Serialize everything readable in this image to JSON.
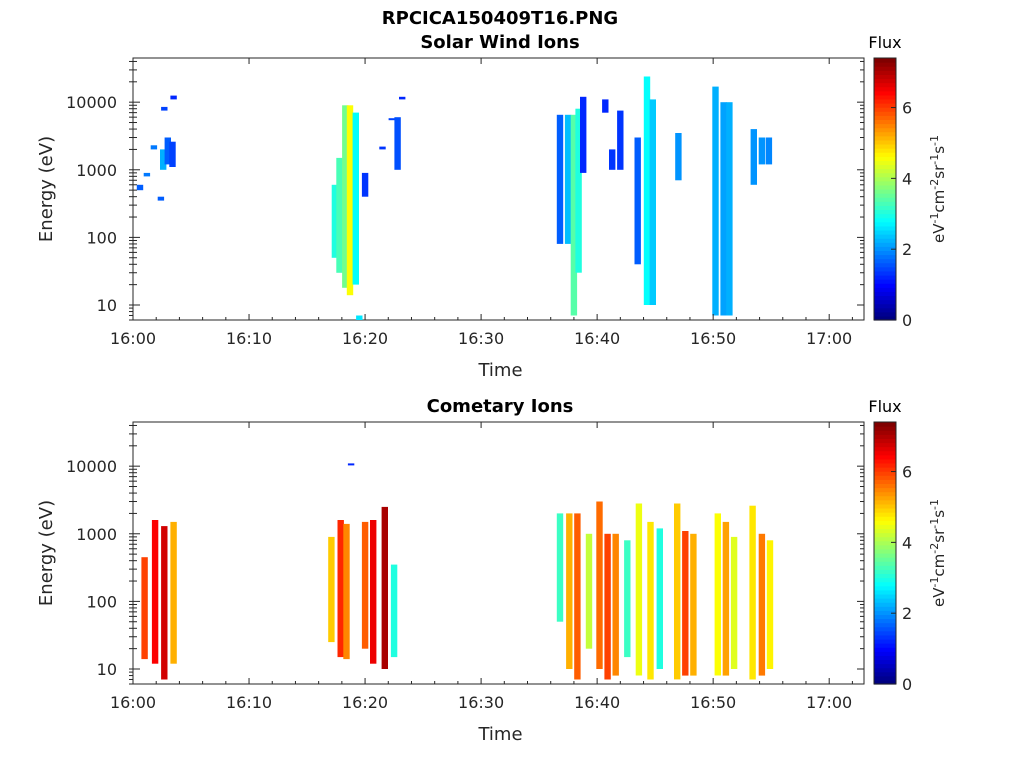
{
  "figure_title": "RPCICA150409T16.PNG",
  "chart_data": [
    {
      "type": "heatmap",
      "title": "Solar Wind Ions",
      "xlabel": "Time",
      "ylabel": "Energy (eV)",
      "x_ticks": [
        "16:00",
        "16:10",
        "16:20",
        "16:30",
        "16:40",
        "16:50",
        "17:00"
      ],
      "xlim_minutes": [
        0,
        63
      ],
      "y_scale": "log",
      "y_ticks": [
        "10",
        "100",
        "1000",
        "10000"
      ],
      "ylim": [
        6,
        45000
      ],
      "colorbar": {
        "title": "Flux",
        "label": "eV-1cm-2sr-1s-1",
        "ticks": [
          "0",
          "2",
          "4",
          "6"
        ],
        "range": [
          0,
          7.4
        ]
      },
      "blocks": [
        {
          "t": 0.6,
          "e": [
            500,
            600
          ],
          "v": 1.6
        },
        {
          "t": 1.2,
          "e": [
            800,
            900
          ],
          "v": 1.8
        },
        {
          "t": 1.8,
          "e": [
            2000,
            2300
          ],
          "v": 1.8
        },
        {
          "t": 2.4,
          "e": [
            350,
            400
          ],
          "v": 1.6
        },
        {
          "t": 2.6,
          "e": [
            1000,
            2000
          ],
          "v": 2.2
        },
        {
          "t": 2.7,
          "e": [
            7500,
            8500
          ],
          "v": 1.4
        },
        {
          "t": 3.0,
          "e": [
            1200,
            3000
          ],
          "v": 1.6
        },
        {
          "t": 3.4,
          "e": [
            1100,
            2600
          ],
          "v": 1.4
        },
        {
          "t": 3.5,
          "e": [
            11000,
            12500
          ],
          "v": 1.2
        },
        {
          "t": 17.4,
          "e": [
            50,
            600
          ],
          "v": 3.0
        },
        {
          "t": 17.8,
          "e": [
            30,
            1500
          ],
          "v": 3.3
        },
        {
          "t": 18.3,
          "e": [
            18,
            9000
          ],
          "v": 3.6
        },
        {
          "t": 18.7,
          "e": [
            14,
            9000
          ],
          "v": 4.6
        },
        {
          "t": 19.2,
          "e": [
            20,
            7000
          ],
          "v": 2.8
        },
        {
          "t": 19.5,
          "e": [
            6,
            7
          ],
          "v": 2.6
        },
        {
          "t": 20.0,
          "e": [
            400,
            900
          ],
          "v": 1.3
        },
        {
          "t": 21.5,
          "e": [
            2000,
            2200
          ],
          "v": 1.3
        },
        {
          "t": 22.3,
          "e": [
            5500,
            5800
          ],
          "v": 1.4
        },
        {
          "t": 22.8,
          "e": [
            1000,
            6000
          ],
          "v": 1.5
        },
        {
          "t": 23.2,
          "e": [
            11000,
            12000
          ],
          "v": 1.2
        },
        {
          "t": 36.8,
          "e": [
            80,
            6500
          ],
          "v": 1.6
        },
        {
          "t": 37.5,
          "e": [
            80,
            6500
          ],
          "v": 2.3
        },
        {
          "t": 38.0,
          "e": [
            7,
            6500
          ],
          "v": 3.4
        },
        {
          "t": 38.4,
          "e": [
            30,
            8000
          ],
          "v": 3.0
        },
        {
          "t": 38.8,
          "e": [
            900,
            12000
          ],
          "v": 1.2
        },
        {
          "t": 40.7,
          "e": [
            7000,
            11000
          ],
          "v": 1.2
        },
        {
          "t": 41.3,
          "e": [
            1000,
            2000
          ],
          "v": 1.3
        },
        {
          "t": 42.0,
          "e": [
            1000,
            7500
          ],
          "v": 1.3
        },
        {
          "t": 43.5,
          "e": [
            40,
            3000
          ],
          "v": 1.6
        },
        {
          "t": 44.3,
          "e": [
            10,
            24000
          ],
          "v": 2.8
        },
        {
          "t": 44.8,
          "e": [
            10,
            11000
          ],
          "v": 2.4
        },
        {
          "t": 47.0,
          "e": [
            700,
            3500
          ],
          "v": 2.0
        },
        {
          "t": 50.2,
          "e": [
            7,
            17000
          ],
          "v": 2.2
        },
        {
          "t": 50.9,
          "e": [
            7,
            10000
          ],
          "v": 2.1
        },
        {
          "t": 51.4,
          "e": [
            7,
            10000
          ],
          "v": 2.2
        },
        {
          "t": 53.5,
          "e": [
            600,
            4000
          ],
          "v": 2.0
        },
        {
          "t": 54.2,
          "e": [
            1200,
            3000
          ],
          "v": 2.0
        },
        {
          "t": 54.8,
          "e": [
            1200,
            3000
          ],
          "v": 1.9
        }
      ]
    },
    {
      "type": "heatmap",
      "title": "Cometary Ions",
      "xlabel": "Time",
      "ylabel": "Energy (eV)",
      "x_ticks": [
        "16:00",
        "16:10",
        "16:20",
        "16:30",
        "16:40",
        "16:50",
        "17:00"
      ],
      "xlim_minutes": [
        0,
        63
      ],
      "y_scale": "log",
      "y_ticks": [
        "10",
        "100",
        "1000",
        "10000"
      ],
      "ylim": [
        6,
        45000
      ],
      "colorbar": {
        "title": "Flux",
        "label": "eV-1cm-2sr-1s-1",
        "ticks": [
          "0",
          "2",
          "4",
          "6"
        ],
        "range": [
          0,
          7.4
        ]
      },
      "blocks": [
        {
          "t": 1.0,
          "e": [
            14,
            450
          ],
          "v": 6.0
        },
        {
          "t": 1.9,
          "e": [
            12,
            1600
          ],
          "v": 6.5
        },
        {
          "t": 2.7,
          "e": [
            7,
            1300
          ],
          "v": 6.8
        },
        {
          "t": 3.5,
          "e": [
            12,
            1500
          ],
          "v": 5.2
        },
        {
          "t": 17.1,
          "e": [
            25,
            900
          ],
          "v": 5.0
        },
        {
          "t": 17.9,
          "e": [
            15,
            1600
          ],
          "v": 6.2
        },
        {
          "t": 18.4,
          "e": [
            14,
            1400
          ],
          "v": 5.5
        },
        {
          "t": 18.8,
          "e": [
            10500,
            11000
          ],
          "v": 1.2
        },
        {
          "t": 20.0,
          "e": [
            20,
            1500
          ],
          "v": 5.8
        },
        {
          "t": 20.7,
          "e": [
            12,
            1600
          ],
          "v": 6.6
        },
        {
          "t": 21.7,
          "e": [
            10,
            2500
          ],
          "v": 7.1
        },
        {
          "t": 22.5,
          "e": [
            15,
            350
          ],
          "v": 3.0
        },
        {
          "t": 36.8,
          "e": [
            50,
            2000
          ],
          "v": 3.2
        },
        {
          "t": 37.6,
          "e": [
            10,
            2000
          ],
          "v": 5.2
        },
        {
          "t": 38.3,
          "e": [
            7,
            2000
          ],
          "v": 5.8
        },
        {
          "t": 39.3,
          "e": [
            20,
            1000
          ],
          "v": 4.2
        },
        {
          "t": 40.2,
          "e": [
            10,
            3000
          ],
          "v": 5.7
        },
        {
          "t": 40.9,
          "e": [
            7,
            1000
          ],
          "v": 6.0
        },
        {
          "t": 41.6,
          "e": [
            8,
            1000
          ],
          "v": 5.5
        },
        {
          "t": 42.6,
          "e": [
            15,
            800
          ],
          "v": 3.2
        },
        {
          "t": 43.6,
          "e": [
            8,
            2800
          ],
          "v": 4.5
        },
        {
          "t": 44.6,
          "e": [
            7,
            1500
          ],
          "v": 4.8
        },
        {
          "t": 45.4,
          "e": [
            10,
            1200
          ],
          "v": 3.0
        },
        {
          "t": 46.9,
          "e": [
            7,
            2800
          ],
          "v": 5.0
        },
        {
          "t": 47.6,
          "e": [
            8,
            1100
          ],
          "v": 6.0
        },
        {
          "t": 48.3,
          "e": [
            8,
            1000
          ],
          "v": 5.2
        },
        {
          "t": 50.4,
          "e": [
            8,
            2000
          ],
          "v": 4.6
        },
        {
          "t": 51.1,
          "e": [
            8,
            1500
          ],
          "v": 5.3
        },
        {
          "t": 51.8,
          "e": [
            10,
            900
          ],
          "v": 4.4
        },
        {
          "t": 53.4,
          "e": [
            7,
            2600
          ],
          "v": 4.8
        },
        {
          "t": 54.2,
          "e": [
            8,
            1000
          ],
          "v": 5.6
        },
        {
          "t": 54.9,
          "e": [
            10,
            800
          ],
          "v": 4.7
        }
      ]
    }
  ]
}
